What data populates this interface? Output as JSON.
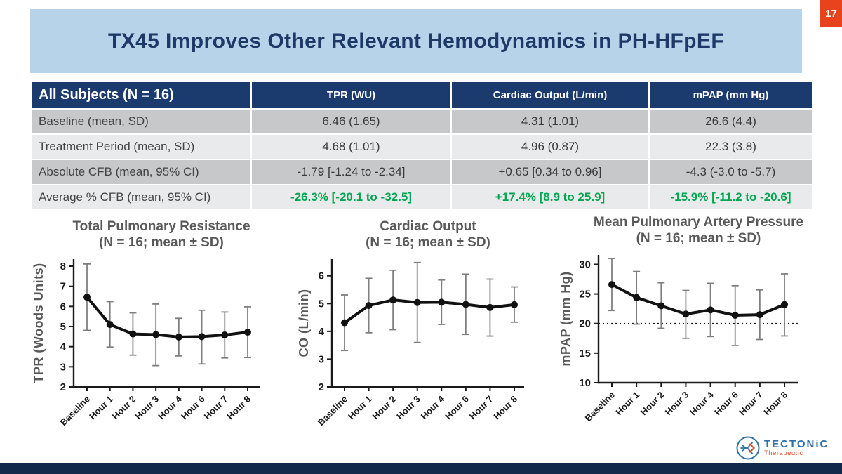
{
  "page": {
    "number": "17"
  },
  "header": {
    "title": "TX45 Improves Other Relevant Hemodynamics in PH-HFpEF"
  },
  "table": {
    "header": [
      "All Subjects (N = 16)",
      "TPR (WU)",
      "Cardiac Output (L/min)",
      "mPAP (mm Hg)"
    ],
    "rows": [
      {
        "label": "Baseline (mean, SD)",
        "values": [
          "6.46 (1.65)",
          "4.31 (1.01)",
          "26.6 (4.4)"
        ]
      },
      {
        "label": "Treatment Period (mean, SD)",
        "values": [
          "4.68 (1.01)",
          "4.96 (0.87)",
          "22.3 (3.8)"
        ]
      },
      {
        "label": "Absolute CFB (mean, 95% CI)",
        "values": [
          "-1.79 [-1.24 to -2.34]",
          "+0.65 [0.34 to 0.96]",
          "-4.3 (-3.0 to -5.7)"
        ]
      },
      {
        "label": "Average % CFB (mean, 95% CI)",
        "values": [
          "-26.3% [-20.1 to -32.5]",
          "+17.4% [8.9 to 25.9]",
          "-15.9% [-11.2 to -20.6]"
        ]
      }
    ]
  },
  "chart_data": [
    {
      "type": "line",
      "title": "Total Pulmonary Resistance",
      "subtitle": "(N = 16; mean ± SD)",
      "ylabel": "TPR (Woods Units)",
      "xlabel": "",
      "ylim": [
        2,
        8.35
      ],
      "yticks": [
        2,
        3,
        4,
        5,
        6,
        7,
        8
      ],
      "grid": false,
      "legend_position": "none",
      "categories": [
        "Baseline",
        "Hour 1",
        "Hour 2",
        "Hour 3",
        "Hour 4",
        "Hour 6",
        "Hour 7",
        "Hour 8"
      ],
      "series": [
        {
          "name": "TPR mean",
          "mean": [
            6.46,
            5.1,
            4.63,
            4.6,
            4.48,
            4.5,
            4.58,
            4.72
          ],
          "upper": [
            8.11,
            6.24,
            5.68,
            6.12,
            5.41,
            5.81,
            5.72,
            5.98
          ],
          "lower": [
            4.81,
            3.98,
            3.58,
            3.06,
            3.54,
            3.14,
            3.44,
            3.46
          ]
        }
      ]
    },
    {
      "type": "line",
      "title": "Cardiac Output",
      "subtitle": "(N = 16; mean ± SD)",
      "ylabel": "CO (L/min)",
      "xlabel": "",
      "ylim": [
        2,
        6.6
      ],
      "yticks": [
        2,
        3,
        4,
        5,
        6
      ],
      "grid": false,
      "legend_position": "none",
      "categories": [
        "Baseline",
        "Hour 1",
        "Hour 2",
        "Hour 3",
        "Hour 4",
        "Hour 6",
        "Hour 7",
        "Hour 8"
      ],
      "series": [
        {
          "name": "CO mean",
          "mean": [
            4.31,
            4.93,
            5.13,
            5.04,
            5.05,
            4.97,
            4.86,
            4.96
          ],
          "upper": [
            5.31,
            5.91,
            6.2,
            6.48,
            5.85,
            6.06,
            5.88,
            5.6
          ],
          "lower": [
            3.31,
            3.95,
            4.06,
            3.6,
            4.25,
            3.89,
            3.83,
            4.33
          ]
        }
      ]
    },
    {
      "type": "line",
      "title": "Mean Pulmonary Artery Pressure",
      "subtitle": "(N = 16; mean ± SD)",
      "ylabel": "mPAP (mm Hg)",
      "xlabel": "",
      "ylim": [
        10,
        31.6
      ],
      "yticks": [
        10,
        15,
        20,
        25,
        30
      ],
      "refline": 20,
      "grid": false,
      "legend_position": "none",
      "categories": [
        "Baseline",
        "Hour 1",
        "Hour 2",
        "Hour 3",
        "Hour 4",
        "Hour 6",
        "Hour 7",
        "Hour 8"
      ],
      "series": [
        {
          "name": "mPAP mean",
          "mean": [
            26.6,
            24.4,
            23.0,
            21.6,
            22.3,
            21.4,
            21.5,
            23.2
          ],
          "upper": [
            31.0,
            28.8,
            26.9,
            25.6,
            26.8,
            26.4,
            25.7,
            28.4
          ],
          "lower": [
            22.2,
            19.9,
            19.2,
            17.5,
            17.8,
            16.3,
            17.3,
            17.9
          ]
        }
      ]
    }
  ],
  "footer": {
    "logo_name": "TECTONiC",
    "logo_subtitle": "Therapeutic"
  },
  "colors": {
    "navy": "#1b3a6d",
    "banner": "#b7d3e9",
    "title_text": "#1e3968",
    "footer": "#12294c",
    "tab_red": "#e8431c",
    "row_dark": "#c7c8c9",
    "row_light": "#e9eaeb",
    "green": "#00a550",
    "chart_gray": "#595959",
    "logo_blue": "#2e6fa7",
    "logo_orange": "#e0552b",
    "ink": "#1a1a1a",
    "errbar": "#7f7f7f"
  }
}
